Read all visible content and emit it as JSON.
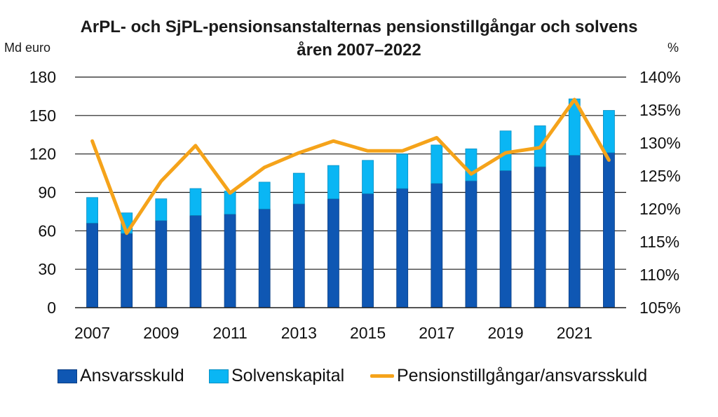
{
  "chart_data": {
    "type": "bar",
    "title_line1": "ArPL- och SjPL-pensionsanstalternas pensionstillgångar och solvens",
    "title_line2": "åren 2007–2022",
    "ylabel_left": "Md euro",
    "ylabel_right": "%",
    "categories": [
      "2007",
      "2008",
      "2009",
      "2010",
      "2011",
      "2012",
      "2013",
      "2014",
      "2015",
      "2016",
      "2017",
      "2018",
      "2019",
      "2020",
      "2021",
      "2022"
    ],
    "x_tick_labels": [
      "2007",
      "2009",
      "2011",
      "2013",
      "2015",
      "2017",
      "2019",
      "2021"
    ],
    "ylim_left": [
      0,
      180
    ],
    "yticks_left": [
      "0",
      "30",
      "60",
      "90",
      "120",
      "150",
      "180"
    ],
    "ylim_right": [
      105,
      140
    ],
    "yticks_right": [
      "105%",
      "110%",
      "115%",
      "120%",
      "125%",
      "130%",
      "135%",
      "140%"
    ],
    "grid": true,
    "legend_position": "bottom",
    "series": [
      {
        "name": "Ansvarsskuld",
        "kind": "bar-stack",
        "color": "#0f57b3",
        "values": [
          66,
          58,
          68,
          72,
          73,
          77,
          81,
          85,
          89,
          93,
          97,
          99,
          107,
          110,
          119,
          121
        ]
      },
      {
        "name": "Solvenskapital",
        "kind": "bar-stack",
        "color": "#0ab6f4",
        "values": [
          20,
          16,
          17,
          21,
          18,
          21,
          24,
          26,
          26,
          27,
          30,
          25,
          31,
          32,
          44,
          33
        ]
      },
      {
        "name": "Pensionstillgångar/ansvarsskuld",
        "kind": "line",
        "axis": "right",
        "color": "#f5a31a",
        "values": [
          130.3,
          116.3,
          124.2,
          129.6,
          122.4,
          126.3,
          128.5,
          130.3,
          128.8,
          128.8,
          130.8,
          125.3,
          128.5,
          129.3,
          136.6,
          127.4
        ]
      }
    ]
  }
}
